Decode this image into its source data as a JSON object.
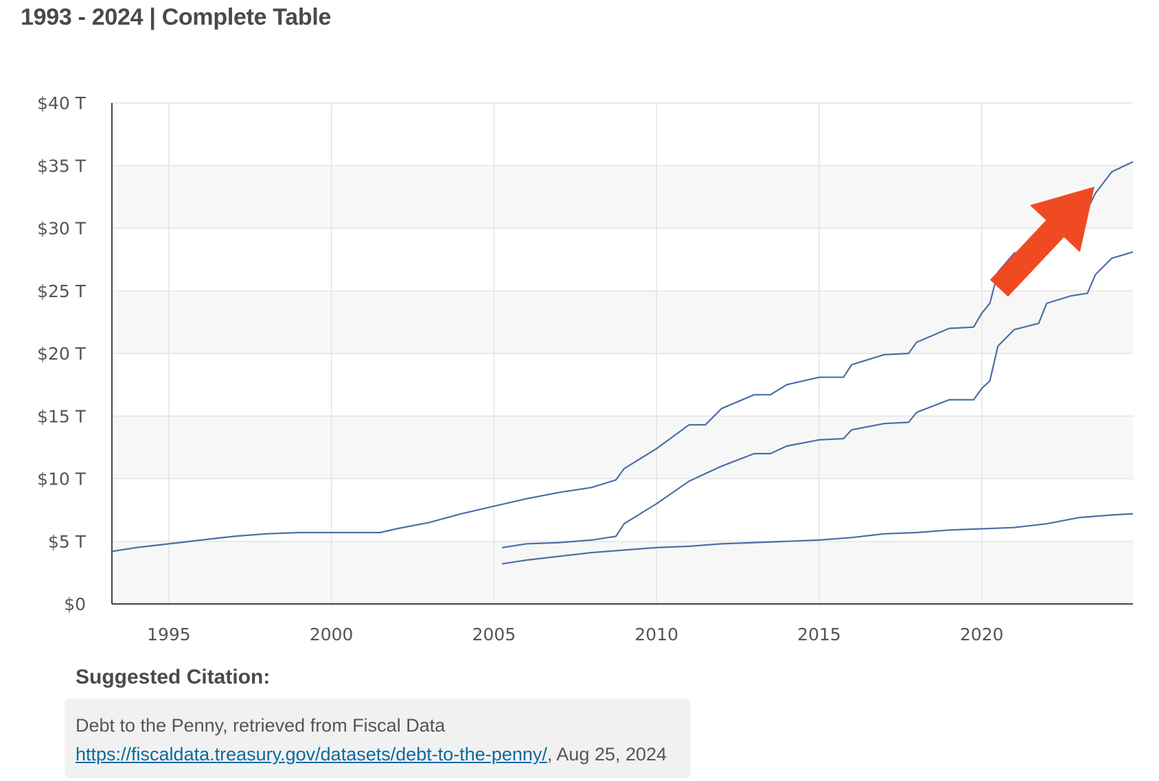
{
  "header": {
    "title": "1993 - 2024 | Complete Table"
  },
  "chart_data": {
    "type": "line",
    "title": "",
    "xlabel": "",
    "ylabel": "",
    "xlim": [
      1993.25,
      2024.65
    ],
    "ylim": [
      0,
      40
    ],
    "y_ticks": [
      0,
      5,
      10,
      15,
      20,
      25,
      30,
      35,
      40
    ],
    "y_tick_labels": [
      "$0",
      "$5 T",
      "$10 T",
      "$15 T",
      "$20 T",
      "$25 T",
      "$30 T",
      "$35 T",
      "$40 T"
    ],
    "x_ticks": [
      1995,
      2000,
      2005,
      2010,
      2015,
      2020
    ],
    "x_tick_labels": [
      "1995",
      "2000",
      "2005",
      "2010",
      "2015",
      "2020"
    ],
    "grid": true,
    "alternating_bands": true,
    "line_color": "#4a6fa5",
    "series": [
      {
        "points": [
          [
            1993.25,
            4.2
          ],
          [
            1994.0,
            4.5
          ],
          [
            1995.0,
            4.8
          ],
          [
            1996.0,
            5.1
          ],
          [
            1997.0,
            5.4
          ],
          [
            1998.0,
            5.6
          ],
          [
            1999.0,
            5.7
          ],
          [
            2000.0,
            5.7
          ],
          [
            2001.0,
            5.7
          ],
          [
            2001.5,
            5.7
          ],
          [
            2002.0,
            6.0
          ],
          [
            2003.0,
            6.5
          ],
          [
            2004.0,
            7.2
          ],
          [
            2005.0,
            7.8
          ],
          [
            2006.0,
            8.4
          ],
          [
            2007.0,
            8.9
          ],
          [
            2008.0,
            9.3
          ],
          [
            2008.75,
            9.9
          ],
          [
            2009.0,
            10.8
          ],
          [
            2010.0,
            12.4
          ],
          [
            2011.0,
            14.3
          ],
          [
            2011.5,
            14.3
          ],
          [
            2012.0,
            15.6
          ],
          [
            2013.0,
            16.7
          ],
          [
            2013.5,
            16.7
          ],
          [
            2014.0,
            17.5
          ],
          [
            2015.0,
            18.1
          ],
          [
            2015.75,
            18.1
          ],
          [
            2016.0,
            19.1
          ],
          [
            2017.0,
            19.9
          ],
          [
            2017.75,
            20.0
          ],
          [
            2018.0,
            20.9
          ],
          [
            2019.0,
            22.0
          ],
          [
            2019.75,
            22.1
          ],
          [
            2020.0,
            23.2
          ],
          [
            2020.25,
            24.0
          ],
          [
            2020.5,
            26.5
          ],
          [
            2021.0,
            28.0
          ],
          [
            2021.75,
            28.5
          ],
          [
            2022.0,
            30.3
          ],
          [
            2022.75,
            31.2
          ],
          [
            2023.25,
            31.5
          ],
          [
            2023.5,
            32.8
          ],
          [
            2024.0,
            34.5
          ],
          [
            2024.65,
            35.3
          ]
        ]
      },
      {
        "points": [
          [
            2005.25,
            4.5
          ],
          [
            2006.0,
            4.8
          ],
          [
            2007.0,
            4.9
          ],
          [
            2008.0,
            5.1
          ],
          [
            2008.75,
            5.4
          ],
          [
            2009.0,
            6.4
          ],
          [
            2010.0,
            8.0
          ],
          [
            2011.0,
            9.8
          ],
          [
            2012.0,
            11.0
          ],
          [
            2013.0,
            12.0
          ],
          [
            2013.5,
            12.0
          ],
          [
            2014.0,
            12.6
          ],
          [
            2015.0,
            13.1
          ],
          [
            2015.75,
            13.2
          ],
          [
            2016.0,
            13.9
          ],
          [
            2017.0,
            14.4
          ],
          [
            2017.75,
            14.5
          ],
          [
            2018.0,
            15.3
          ],
          [
            2019.0,
            16.3
          ],
          [
            2019.75,
            16.3
          ],
          [
            2020.0,
            17.2
          ],
          [
            2020.25,
            17.8
          ],
          [
            2020.5,
            20.6
          ],
          [
            2021.0,
            21.9
          ],
          [
            2021.75,
            22.4
          ],
          [
            2022.0,
            24.0
          ],
          [
            2022.75,
            24.6
          ],
          [
            2023.25,
            24.8
          ],
          [
            2023.5,
            26.3
          ],
          [
            2024.0,
            27.6
          ],
          [
            2024.65,
            28.1
          ]
        ]
      },
      {
        "points": [
          [
            2005.25,
            3.2
          ],
          [
            2006.0,
            3.5
          ],
          [
            2007.0,
            3.8
          ],
          [
            2008.0,
            4.1
          ],
          [
            2009.0,
            4.3
          ],
          [
            2010.0,
            4.5
          ],
          [
            2011.0,
            4.6
          ],
          [
            2012.0,
            4.8
          ],
          [
            2013.0,
            4.9
          ],
          [
            2014.0,
            5.0
          ],
          [
            2015.0,
            5.1
          ],
          [
            2016.0,
            5.3
          ],
          [
            2017.0,
            5.6
          ],
          [
            2018.0,
            5.7
          ],
          [
            2019.0,
            5.9
          ],
          [
            2020.0,
            6.0
          ],
          [
            2021.0,
            6.1
          ],
          [
            2022.0,
            6.4
          ],
          [
            2023.0,
            6.9
          ],
          [
            2024.0,
            7.1
          ],
          [
            2024.65,
            7.2
          ]
        ]
      }
    ]
  },
  "citation": {
    "heading": "Suggested Citation:",
    "source_text": "Debt to the Penny, retrieved from Fiscal Data",
    "url": "https://fiscaldata.treasury.gov/datasets/debt-to-the-penny/",
    "date_suffix": ", Aug 25, 2024"
  },
  "annotation": {
    "arrow_color": "#f04a23"
  }
}
